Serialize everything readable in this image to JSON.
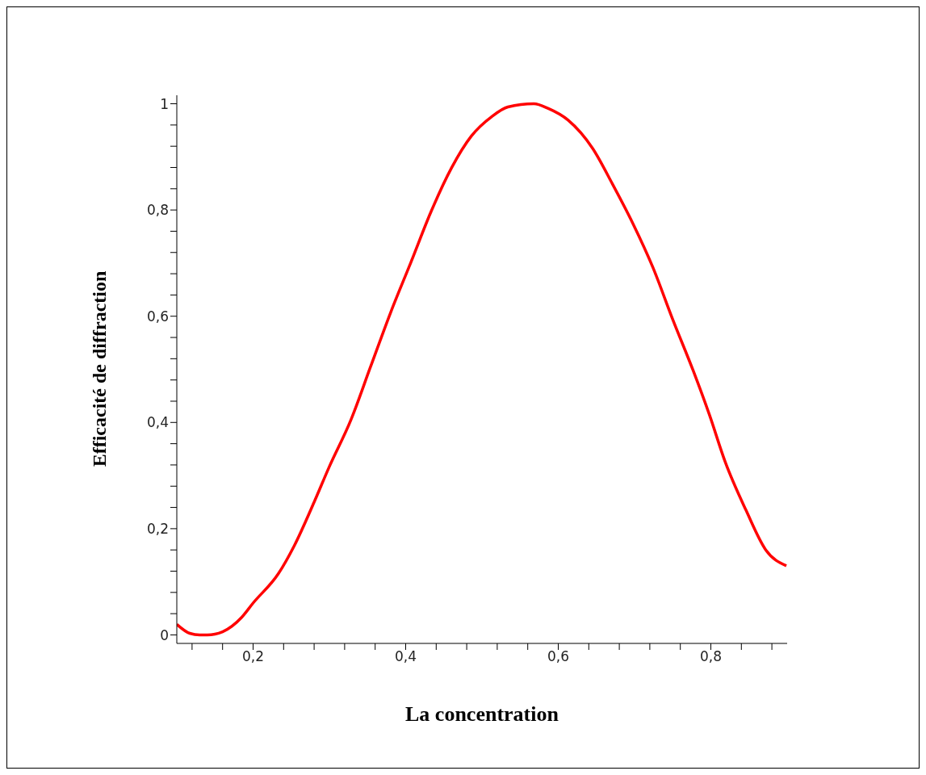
{
  "chart_data": {
    "type": "line",
    "xlabel": "La concentration",
    "ylabel": "Efficacité de diffraction",
    "x": [
      0.1,
      0.117,
      0.13,
      0.14,
      0.16,
      0.185,
      0.2,
      0.233,
      0.254,
      0.28,
      0.3,
      0.328,
      0.354,
      0.38,
      0.407,
      0.433,
      0.46,
      0.486,
      0.513,
      0.534,
      0.568,
      0.587,
      0.613,
      0.645,
      0.671,
      0.698,
      0.724,
      0.75,
      0.777,
      0.798,
      0.819,
      0.846,
      0.872,
      0.899
    ],
    "series": [
      {
        "color": "#ff0000",
        "values": [
          0.02,
          0.003,
          0,
          0,
          0.006,
          0.033,
          0.06,
          0.115,
          0.168,
          0.25,
          0.317,
          0.404,
          0.505,
          0.606,
          0.702,
          0.796,
          0.879,
          0.939,
          0.976,
          0.994,
          1.0,
          0.991,
          0.969,
          0.916,
          0.849,
          0.774,
          0.692,
          0.594,
          0.497,
          0.415,
          0.325,
          0.235,
          0.16,
          0.13
        ]
      }
    ],
    "xlim": [
      0.1,
      0.9
    ],
    "ylim": [
      -0.016,
      1.016
    ],
    "xticks": [
      {
        "value": 0.12,
        "label": null
      },
      {
        "value": 0.16,
        "label": null
      },
      {
        "value": 0.2,
        "label": "0,2"
      },
      {
        "value": 0.24,
        "label": null
      },
      {
        "value": 0.28,
        "label": null
      },
      {
        "value": 0.32,
        "label": null
      },
      {
        "value": 0.36,
        "label": null
      },
      {
        "value": 0.4,
        "label": "0,4"
      },
      {
        "value": 0.44,
        "label": null
      },
      {
        "value": 0.48,
        "label": null
      },
      {
        "value": 0.52,
        "label": null
      },
      {
        "value": 0.56,
        "label": null
      },
      {
        "value": 0.6,
        "label": "0,6"
      },
      {
        "value": 0.64,
        "label": null
      },
      {
        "value": 0.68,
        "label": null
      },
      {
        "value": 0.72,
        "label": null
      },
      {
        "value": 0.76,
        "label": null
      },
      {
        "value": 0.8,
        "label": "0,8"
      },
      {
        "value": 0.84,
        "label": null
      },
      {
        "value": 0.88,
        "label": null
      }
    ],
    "yticks": [
      0,
      {
        "value": 0.04,
        "label": null
      },
      {
        "value": 0.08,
        "label": null
      },
      {
        "value": 0.12,
        "label": null
      },
      {
        "value": 0.16,
        "label": null
      },
      {
        "value": 0.2,
        "label": "0,2"
      },
      {
        "value": 0.24,
        "label": null
      },
      {
        "value": 0.28,
        "label": null
      },
      {
        "value": 0.32,
        "label": null
      },
      {
        "value": 0.36,
        "label": null
      },
      {
        "value": 0.4,
        "label": "0,4"
      },
      {
        "value": 0.44,
        "label": null
      },
      {
        "value": 0.48,
        "label": null
      },
      {
        "value": 0.52,
        "label": null
      },
      {
        "value": 0.56,
        "label": null
      },
      {
        "value": 0.6,
        "label": "0,6"
      },
      {
        "value": 0.64,
        "label": null
      },
      {
        "value": 0.68,
        "label": null
      },
      {
        "value": 0.72,
        "label": null
      },
      {
        "value": 0.76,
        "label": null
      },
      {
        "value": 0.8,
        "label": "0,8"
      },
      {
        "value": 0.84,
        "label": null
      },
      {
        "value": 0.88,
        "label": null
      },
      {
        "value": 0.92,
        "label": null
      },
      {
        "value": 0.96,
        "label": null
      },
      1
    ],
    "grid": false,
    "legend": false,
    "marker": "none",
    "line_style": "solid"
  }
}
